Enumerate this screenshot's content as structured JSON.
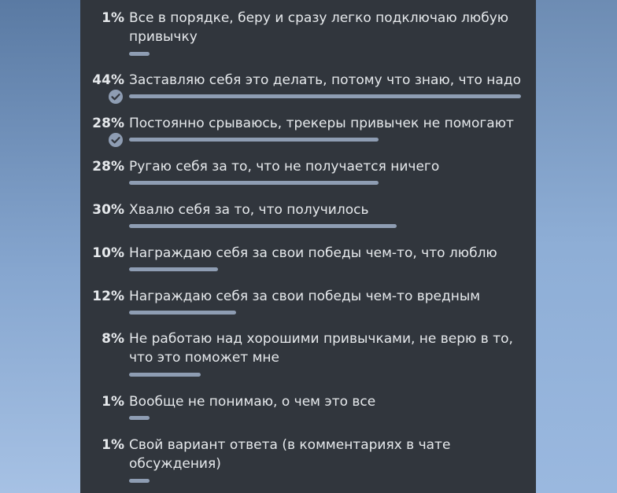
{
  "poll": {
    "bar_color": "#8e9db3",
    "options": [
      {
        "percent": "1%",
        "value": 1,
        "text": "Все в порядке, беру и сразу легко подключаю любую привычку",
        "selected": false
      },
      {
        "percent": "44%",
        "value": 44,
        "text": "Заставляю себя это делать, потому что знаю, что надо",
        "selected": true
      },
      {
        "percent": "28%",
        "value": 28,
        "text": "Постоянно срываюсь, трекеры привычек не помогают",
        "selected": true
      },
      {
        "percent": "28%",
        "value": 28,
        "text": "Ругаю себя за то, что не получается ничего",
        "selected": false
      },
      {
        "percent": "30%",
        "value": 30,
        "text": "Хвалю себя за то, что получилось",
        "selected": false
      },
      {
        "percent": "10%",
        "value": 10,
        "text": "Награждаю себя за свои победы чем-то, что люблю",
        "selected": false
      },
      {
        "percent": "12%",
        "value": 12,
        "text": "Награждаю себя за свои победы чем-то вредным",
        "selected": false
      },
      {
        "percent": "8%",
        "value": 8,
        "text": "Не работаю над хорошими привычками, не верю в то, что это поможет мне",
        "selected": false
      },
      {
        "percent": "1%",
        "value": 1,
        "text": "Вообще не понимаю, о чем это все",
        "selected": false
      },
      {
        "percent": "1%",
        "value": 1,
        "text": "Свой вариант ответа (в комментариях в чате обсуждения)",
        "selected": false
      }
    ]
  }
}
